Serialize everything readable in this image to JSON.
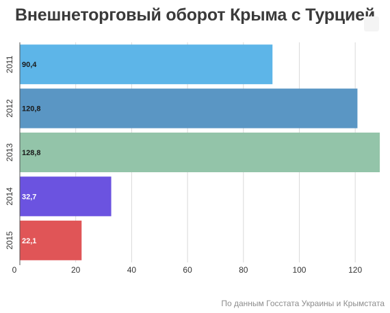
{
  "title": "Внешнеторговый оборот Крыма с Турцией",
  "source": "По данным Госстата Украины и Крымстата",
  "chart_data": {
    "type": "bar",
    "orientation": "horizontal",
    "categories": [
      "2011",
      "2012",
      "2013",
      "2014",
      "2015"
    ],
    "values": [
      90.4,
      120.8,
      128.8,
      32.7,
      22.1
    ],
    "value_labels": [
      "90,4",
      "120,8",
      "128,8",
      "32,7",
      "22,1"
    ],
    "colors": [
      "#5db5e8",
      "#5a96c4",
      "#93c4a9",
      "#6b53e0",
      "#e05557"
    ],
    "label_colors": [
      "#1a1a1a",
      "#1a1a1a",
      "#1a1a1a",
      "#ffffff",
      "#ffffff"
    ],
    "xticks": [
      "0",
      "20",
      "40",
      "60",
      "80",
      "100",
      "120"
    ],
    "xlim": [
      0,
      130
    ],
    "grid": true,
    "title": "Внешнеторговый оборот Крыма с Турцией",
    "xlabel": "",
    "ylabel": ""
  }
}
